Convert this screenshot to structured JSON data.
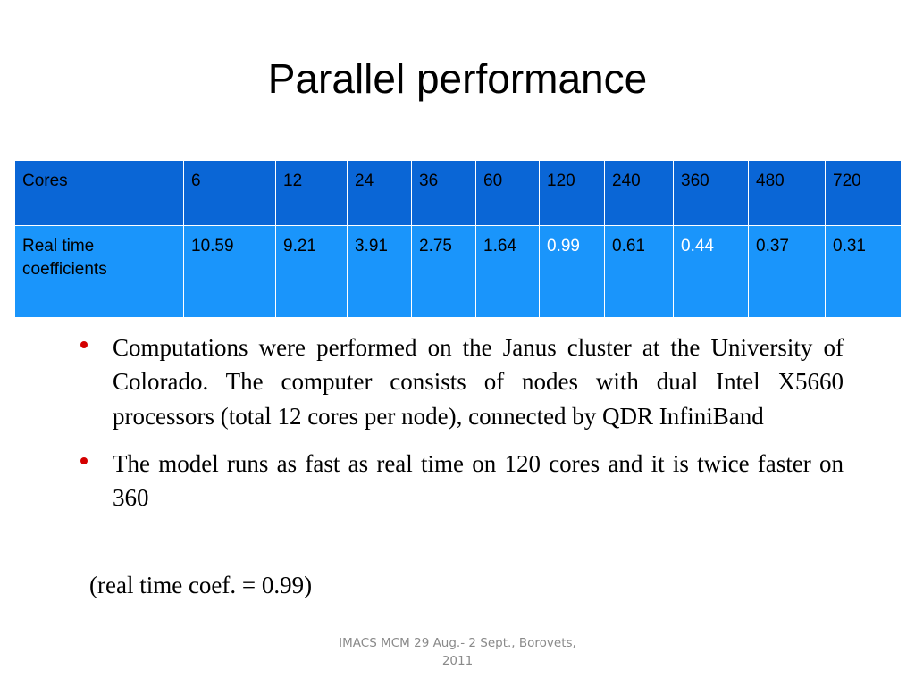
{
  "slide": {
    "title": "Parallel performance"
  },
  "table": {
    "header": [
      "Cores",
      "6",
      "12",
      "24",
      "36",
      "60",
      "120",
      "240",
      "360",
      "480",
      "720"
    ],
    "row": [
      "Real time coefficients",
      "10.59",
      "9.21",
      "3.91",
      "2.75",
      "1.64",
      "0.99",
      "0.61",
      "0.44",
      "0.37",
      "0.31"
    ],
    "colors": {
      "header_bg": "#0a66d6",
      "row_bg": "#1a95fb",
      "highlight_text": "#ffffff"
    }
  },
  "bullets": [
    "Computations were performed on the Janus cluster at the University of Colorado. The computer consists of nodes with dual Intel X5660 processors (total 12 cores per node), connected by QDR InfiniBand",
    "The model runs as fast as real time on 120 cores and it is twice faster on 360"
  ],
  "note": "(real time coef. = 0.99)",
  "footer": "IMACS MCM 29 Aug.- 2 Sept., Borovets, 2011",
  "colors": {
    "bullet_dot": "#d40000"
  }
}
